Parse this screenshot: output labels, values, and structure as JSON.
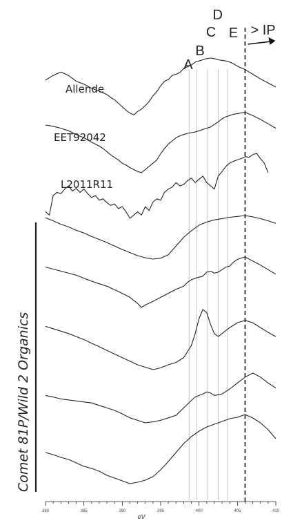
{
  "chart_data": {
    "type": "line",
    "xlabel": "eV",
    "xlim": [
      380,
      410
    ],
    "x_ticks": [
      "380",
      "385",
      "390",
      "395",
      "400",
      "405",
      "410"
    ],
    "peaks": [
      {
        "label": "A",
        "x": 398.7
      },
      {
        "label": "B",
        "x": 399.7
      },
      {
        "label": "C",
        "x": 401.1
      },
      {
        "label": "D",
        "x": 402.5
      },
      {
        "label": "E",
        "x": 403.7
      }
    ],
    "ionization": {
      "label": "> IP",
      "x": 406.0
    },
    "group_label": "Comet 81P/Wild 2 Organics",
    "series": [
      {
        "name": "Allende",
        "x": [
          380,
          381,
          382,
          383,
          384,
          385,
          386,
          387,
          388,
          388.5,
          389,
          389.5,
          390,
          390.5,
          391,
          391.5,
          392,
          392.5,
          393,
          393.5,
          394,
          394.5,
          395,
          395.5,
          396,
          396.5,
          397,
          397.5,
          398,
          398.5,
          399,
          399.5,
          400,
          400.5,
          401,
          401.5,
          402,
          402.5,
          403,
          403.5,
          404,
          404.5,
          405,
          405.5,
          406,
          407,
          408,
          409,
          410
        ],
        "y": [
          0.62,
          0.7,
          0.76,
          0.7,
          0.6,
          0.55,
          0.48,
          0.43,
          0.37,
          0.32,
          0.28,
          0.22,
          0.16,
          0.1,
          0.05,
          0.02,
          0.08,
          0.12,
          0.18,
          0.25,
          0.35,
          0.42,
          0.52,
          0.6,
          0.63,
          0.7,
          0.72,
          0.75,
          0.82,
          0.85,
          0.88,
          0.93,
          0.95,
          0.97,
          0.99,
          1.0,
          0.99,
          0.97,
          0.96,
          0.95,
          0.93,
          0.9,
          0.86,
          0.83,
          0.8,
          0.72,
          0.64,
          0.57,
          0.5
        ]
      },
      {
        "name": "EET92042",
        "x": [
          380,
          381,
          382,
          383,
          384,
          385,
          386,
          386.5,
          387,
          387.5,
          388,
          388.5,
          389,
          389.5,
          390,
          390.5,
          391,
          391.5,
          392,
          392.5,
          393,
          393.5,
          394,
          394.5,
          395,
          395.5,
          396,
          396.5,
          397,
          397.5,
          398,
          398.5,
          399,
          399.5,
          400,
          400.5,
          401,
          401.5,
          402,
          402.5,
          403,
          403.5,
          404,
          404.5,
          405,
          406,
          407,
          408,
          409,
          410
        ],
        "y": [
          0.75,
          0.73,
          0.7,
          0.66,
          0.6,
          0.55,
          0.48,
          0.45,
          0.42,
          0.38,
          0.33,
          0.28,
          0.24,
          0.2,
          0.15,
          0.12,
          0.08,
          0.05,
          0.02,
          0.0,
          0.05,
          0.1,
          0.15,
          0.2,
          0.3,
          0.38,
          0.45,
          0.5,
          0.55,
          0.58,
          0.6,
          0.62,
          0.63,
          0.64,
          0.66,
          0.68,
          0.7,
          0.72,
          0.76,
          0.8,
          0.85,
          0.88,
          0.9,
          0.92,
          0.93,
          0.95,
          0.9,
          0.84,
          0.77,
          0.7
        ]
      },
      {
        "name": "L2011R11",
        "x": [
          380,
          380.5,
          381,
          381.5,
          382,
          382.5,
          383,
          383.5,
          384,
          384.5,
          385,
          385.5,
          386,
          386.5,
          387,
          387.5,
          388,
          388.5,
          389,
          389.5,
          390,
          390.5,
          391,
          391.5,
          392,
          392.5,
          393,
          393.5,
          394,
          394.5,
          395,
          395.5,
          396,
          396.5,
          397,
          397.5,
          398,
          398.5,
          399,
          399.5,
          400,
          400.5,
          401,
          401.5,
          402,
          402.5,
          403,
          403.5,
          404,
          404.5,
          405,
          405.5,
          406,
          406.5,
          407,
          407.5,
          408,
          408.5,
          409
        ],
        "y": [
          0.1,
          0.05,
          0.35,
          0.4,
          0.38,
          0.45,
          0.5,
          0.42,
          0.46,
          0.4,
          0.45,
          0.38,
          0.32,
          0.35,
          0.28,
          0.3,
          0.24,
          0.2,
          0.22,
          0.15,
          0.18,
          0.1,
          0.0,
          0.05,
          0.1,
          0.05,
          0.18,
          0.12,
          0.25,
          0.3,
          0.28,
          0.4,
          0.45,
          0.48,
          0.55,
          0.5,
          0.52,
          0.58,
          0.62,
          0.55,
          0.6,
          0.65,
          0.55,
          0.5,
          0.45,
          0.65,
          0.72,
          0.8,
          0.85,
          0.88,
          0.9,
          0.92,
          0.95,
          0.94,
          0.98,
          1.0,
          0.92,
          0.85,
          0.7
        ]
      },
      {
        "name": "",
        "x": [
          380,
          381,
          382,
          383,
          384,
          385,
          386,
          387,
          388,
          389,
          390,
          391,
          392,
          393,
          394,
          395,
          396,
          397,
          398,
          399,
          400,
          401,
          402,
          403,
          404,
          405,
          406,
          407,
          408,
          409,
          410
        ],
        "y": [
          0.95,
          0.88,
          0.8,
          0.74,
          0.66,
          0.6,
          0.52,
          0.45,
          0.38,
          0.3,
          0.22,
          0.15,
          0.08,
          0.03,
          0.0,
          0.02,
          0.1,
          0.3,
          0.5,
          0.65,
          0.78,
          0.85,
          0.9,
          0.93,
          0.96,
          0.98,
          1.0,
          0.97,
          0.93,
          0.88,
          0.82
        ]
      },
      {
        "name": "",
        "x": [
          380,
          381,
          382,
          383,
          384,
          385,
          386,
          387,
          388,
          389,
          390,
          391,
          392,
          392.5,
          393,
          394,
          395,
          396,
          397,
          398,
          398.5,
          399,
          399.5,
          400,
          400.5,
          401,
          401.5,
          402,
          402.5,
          403,
          403.5,
          404,
          404.5,
          405,
          405.5,
          406,
          407,
          408,
          409,
          410
        ],
        "y": [
          0.8,
          0.76,
          0.72,
          0.68,
          0.64,
          0.58,
          0.52,
          0.47,
          0.42,
          0.35,
          0.28,
          0.2,
          0.08,
          0.0,
          0.05,
          0.12,
          0.2,
          0.28,
          0.36,
          0.42,
          0.5,
          0.55,
          0.58,
          0.6,
          0.62,
          0.7,
          0.72,
          0.68,
          0.7,
          0.75,
          0.8,
          0.82,
          0.9,
          0.95,
          0.98,
          1.0,
          0.92,
          0.84,
          0.75,
          0.66
        ]
      },
      {
        "name": "",
        "x": [
          380,
          381,
          382,
          383,
          384,
          385,
          386,
          387,
          388,
          389,
          390,
          391,
          392,
          393,
          394,
          395,
          396,
          397,
          398,
          398.5,
          399,
          399.5,
          400,
          400.5,
          401,
          401.5,
          402,
          402.5,
          403,
          404,
          405,
          406,
          407,
          408,
          409,
          410
        ],
        "y": [
          0.72,
          0.68,
          0.64,
          0.6,
          0.55,
          0.5,
          0.44,
          0.38,
          0.32,
          0.26,
          0.2,
          0.14,
          0.08,
          0.04,
          0.0,
          0.03,
          0.08,
          0.12,
          0.2,
          0.3,
          0.4,
          0.6,
          0.85,
          1.0,
          0.95,
          0.75,
          0.6,
          0.55,
          0.6,
          0.7,
          0.78,
          0.82,
          0.78,
          0.7,
          0.62,
          0.55
        ]
      },
      {
        "name": "",
        "x": [
          380,
          381,
          382,
          383,
          384,
          385,
          386,
          387,
          388,
          389,
          390,
          391,
          392,
          393,
          394,
          395,
          396,
          397,
          398,
          399,
          399.5,
          400,
          400.5,
          401,
          401.5,
          402,
          403,
          404,
          405,
          406,
          407,
          408,
          409,
          410
        ],
        "y": [
          0.55,
          0.52,
          0.48,
          0.46,
          0.44,
          0.42,
          0.4,
          0.35,
          0.3,
          0.25,
          0.18,
          0.1,
          0.05,
          0.0,
          0.02,
          0.05,
          0.1,
          0.15,
          0.3,
          0.45,
          0.52,
          0.55,
          0.58,
          0.62,
          0.6,
          0.55,
          0.58,
          0.68,
          0.8,
          0.92,
          1.0,
          0.92,
          0.8,
          0.7
        ]
      },
      {
        "name": "",
        "x": [
          380,
          381,
          382,
          383,
          384,
          385,
          386,
          387,
          388,
          389,
          390,
          391,
          392,
          393,
          394,
          395,
          396,
          397,
          398,
          399,
          400,
          401,
          402,
          403,
          404,
          405,
          406,
          407,
          408,
          409,
          410
        ],
        "y": [
          0.45,
          0.42,
          0.38,
          0.35,
          0.3,
          0.25,
          0.22,
          0.18,
          0.12,
          0.08,
          0.04,
          0.0,
          0.02,
          0.05,
          0.1,
          0.2,
          0.32,
          0.45,
          0.58,
          0.68,
          0.76,
          0.82,
          0.86,
          0.9,
          0.94,
          0.96,
          1.0,
          0.95,
          0.88,
          0.78,
          0.65
        ]
      }
    ]
  }
}
